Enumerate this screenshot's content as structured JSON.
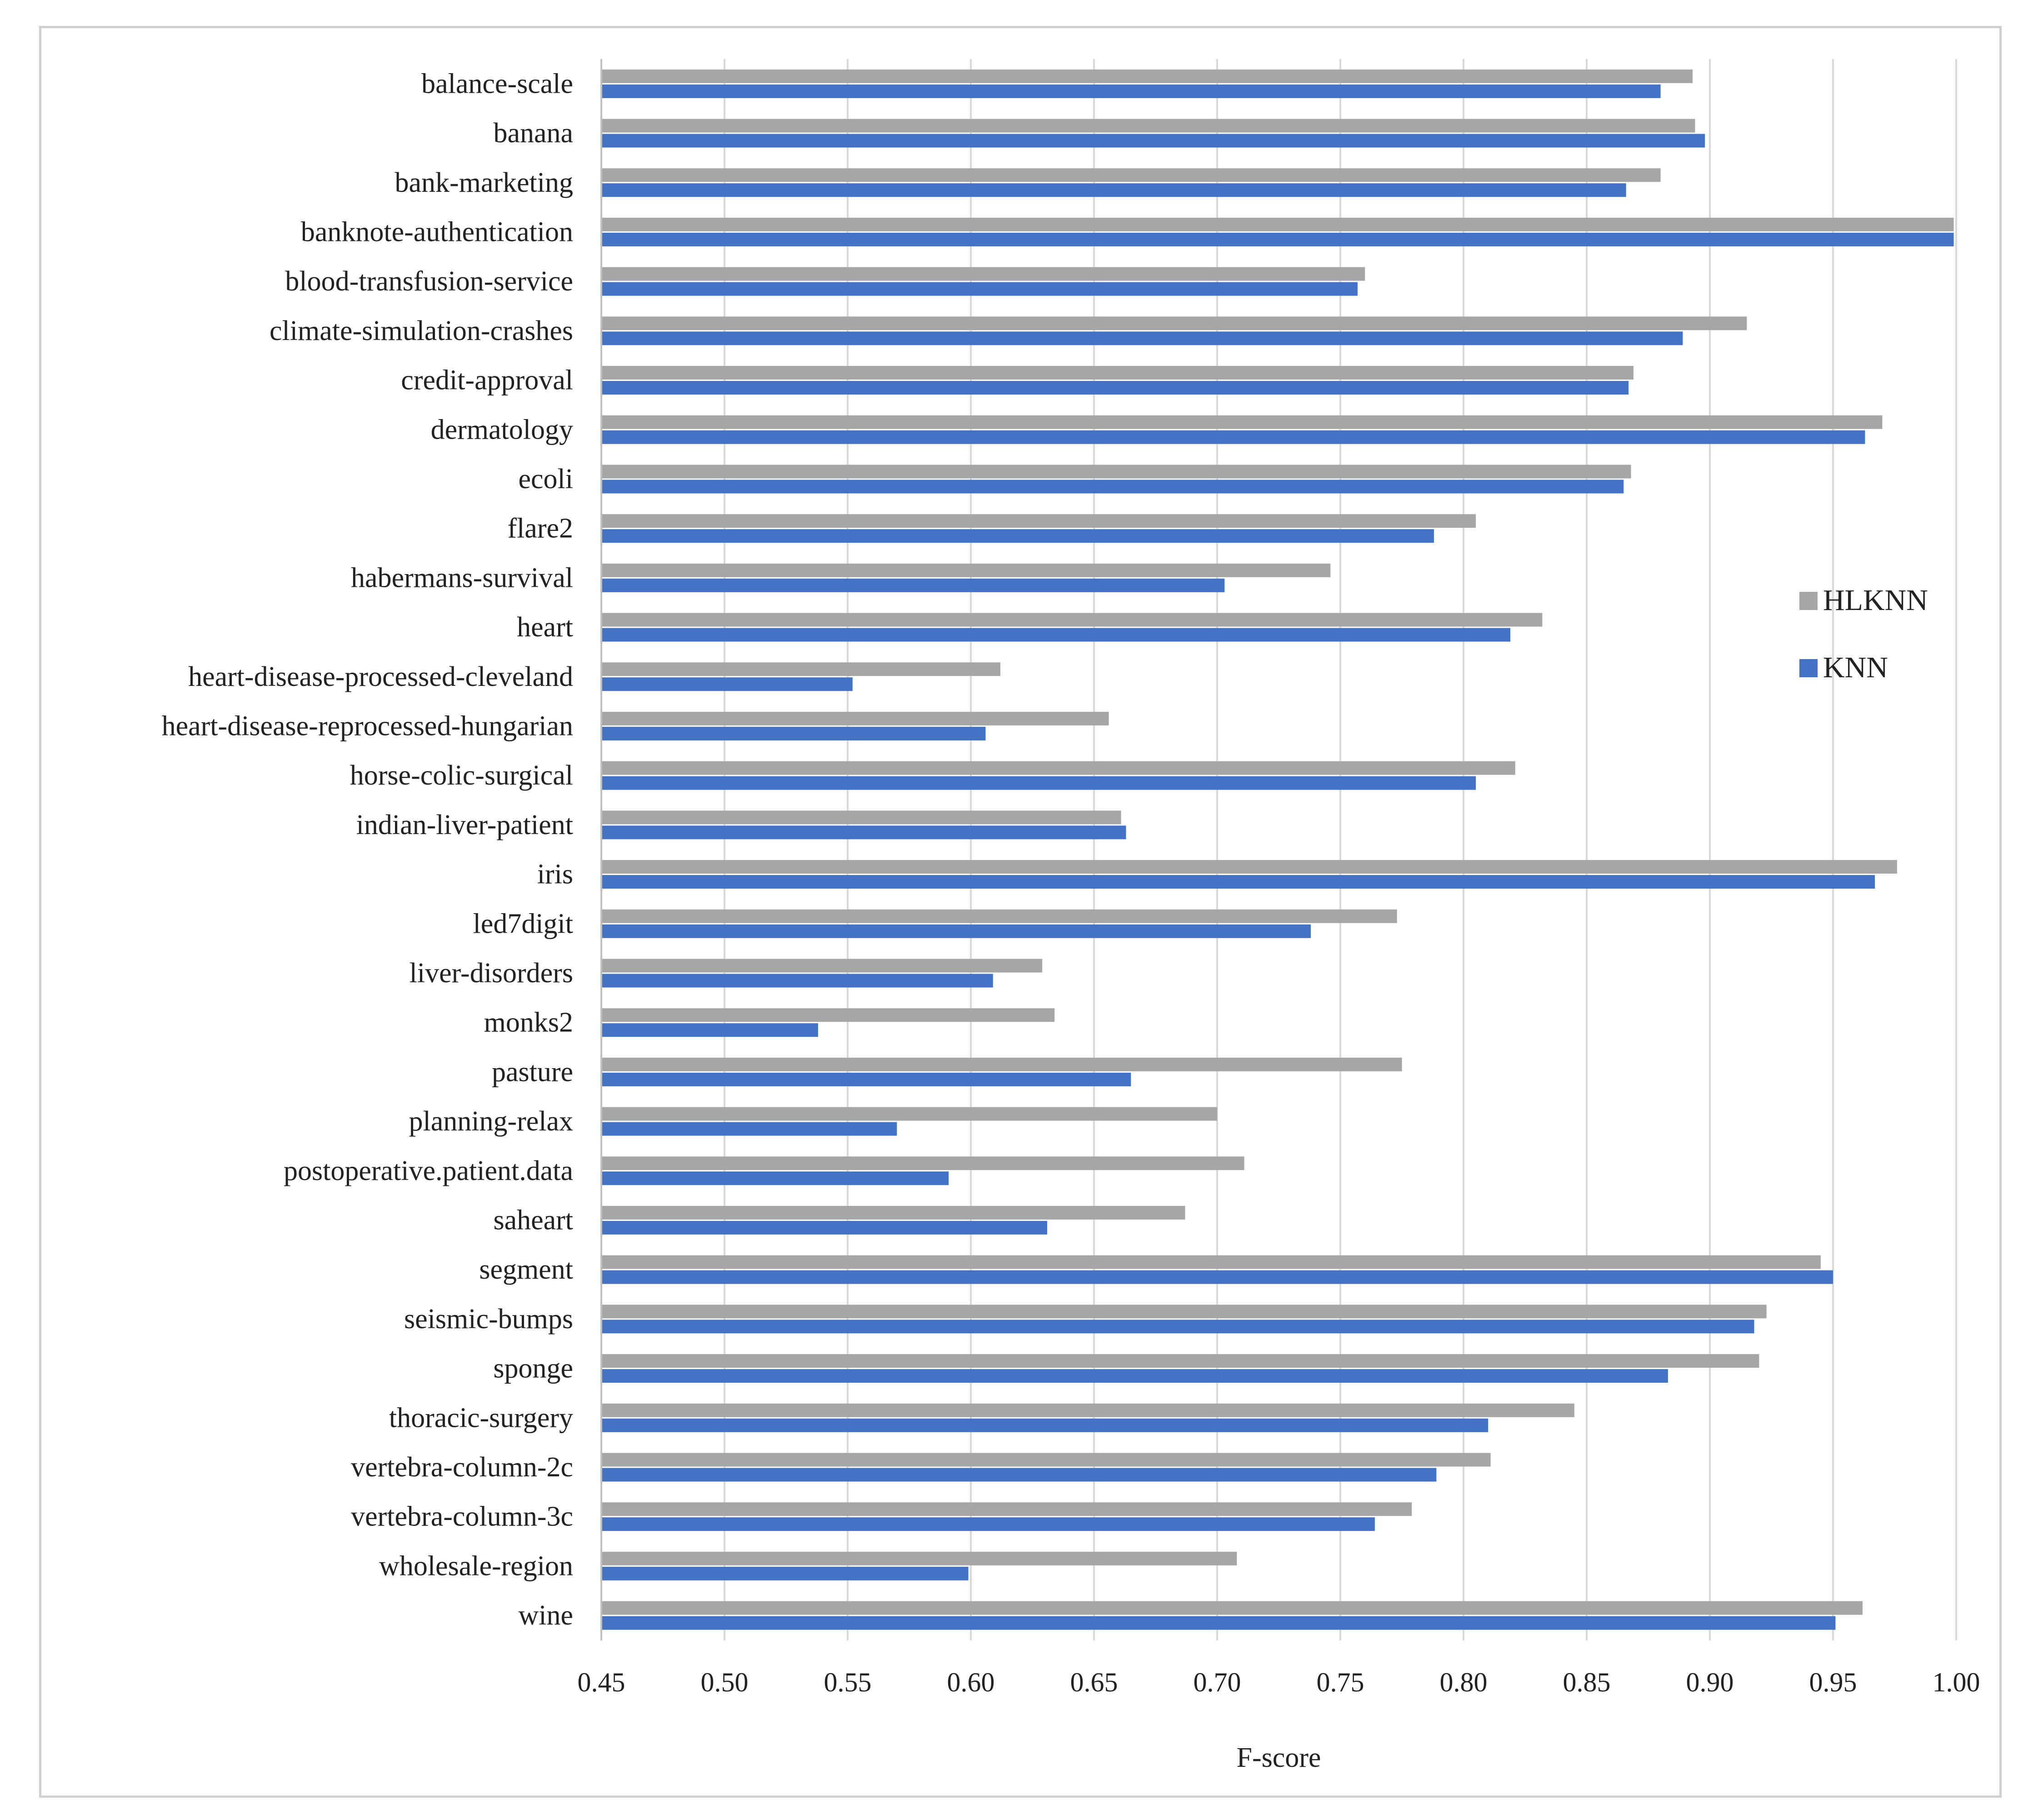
{
  "chart_data": {
    "type": "bar",
    "orientation": "horizontal",
    "title": "",
    "xlabel": "F-score",
    "ylabel": "",
    "xlim": [
      0.45,
      1.0
    ],
    "xticks": [
      "0.45",
      "0.50",
      "0.55",
      "0.60",
      "0.65",
      "0.70",
      "0.75",
      "0.80",
      "0.85",
      "0.90",
      "0.95",
      "1.00"
    ],
    "grid": true,
    "legend_position": "right",
    "categories": [
      "balance-scale",
      "banana",
      "bank-marketing",
      "banknote-authentication",
      "blood-transfusion-service",
      "climate-simulation-crashes",
      "credit-approval",
      "dermatology",
      "ecoli",
      "flare2",
      "habermans-survival",
      "heart",
      "heart-disease-processed-cleveland",
      "heart-disease-reprocessed-hungarian",
      "horse-colic-surgical",
      "indian-liver-patient",
      "iris",
      "led7digit",
      "liver-disorders",
      "monks2",
      "pasture",
      "planning-relax",
      "postoperative.patient.data",
      "saheart",
      "segment",
      "seismic-bumps",
      "sponge",
      "thoracic-surgery",
      "vertebra-column-2c",
      "vertebra-column-3c",
      "wholesale-region",
      "wine"
    ],
    "series": [
      {
        "name": "HLKNN",
        "color": "#a6a6a6",
        "values": [
          0.893,
          0.894,
          0.88,
          0.999,
          0.76,
          0.915,
          0.869,
          0.97,
          0.868,
          0.805,
          0.746,
          0.832,
          0.612,
          0.656,
          0.821,
          0.661,
          0.976,
          0.773,
          0.629,
          0.634,
          0.775,
          0.7,
          0.711,
          0.687,
          0.945,
          0.923,
          0.92,
          0.845,
          0.811,
          0.779,
          0.708,
          0.962
        ]
      },
      {
        "name": "KNN",
        "color": "#4472c4",
        "values": [
          0.88,
          0.898,
          0.866,
          0.999,
          0.757,
          0.889,
          0.867,
          0.963,
          0.865,
          0.788,
          0.703,
          0.819,
          0.552,
          0.606,
          0.805,
          0.663,
          0.967,
          0.738,
          0.609,
          0.538,
          0.665,
          0.57,
          0.591,
          0.631,
          0.95,
          0.918,
          0.883,
          0.81,
          0.789,
          0.764,
          0.599,
          0.951
        ]
      }
    ]
  }
}
